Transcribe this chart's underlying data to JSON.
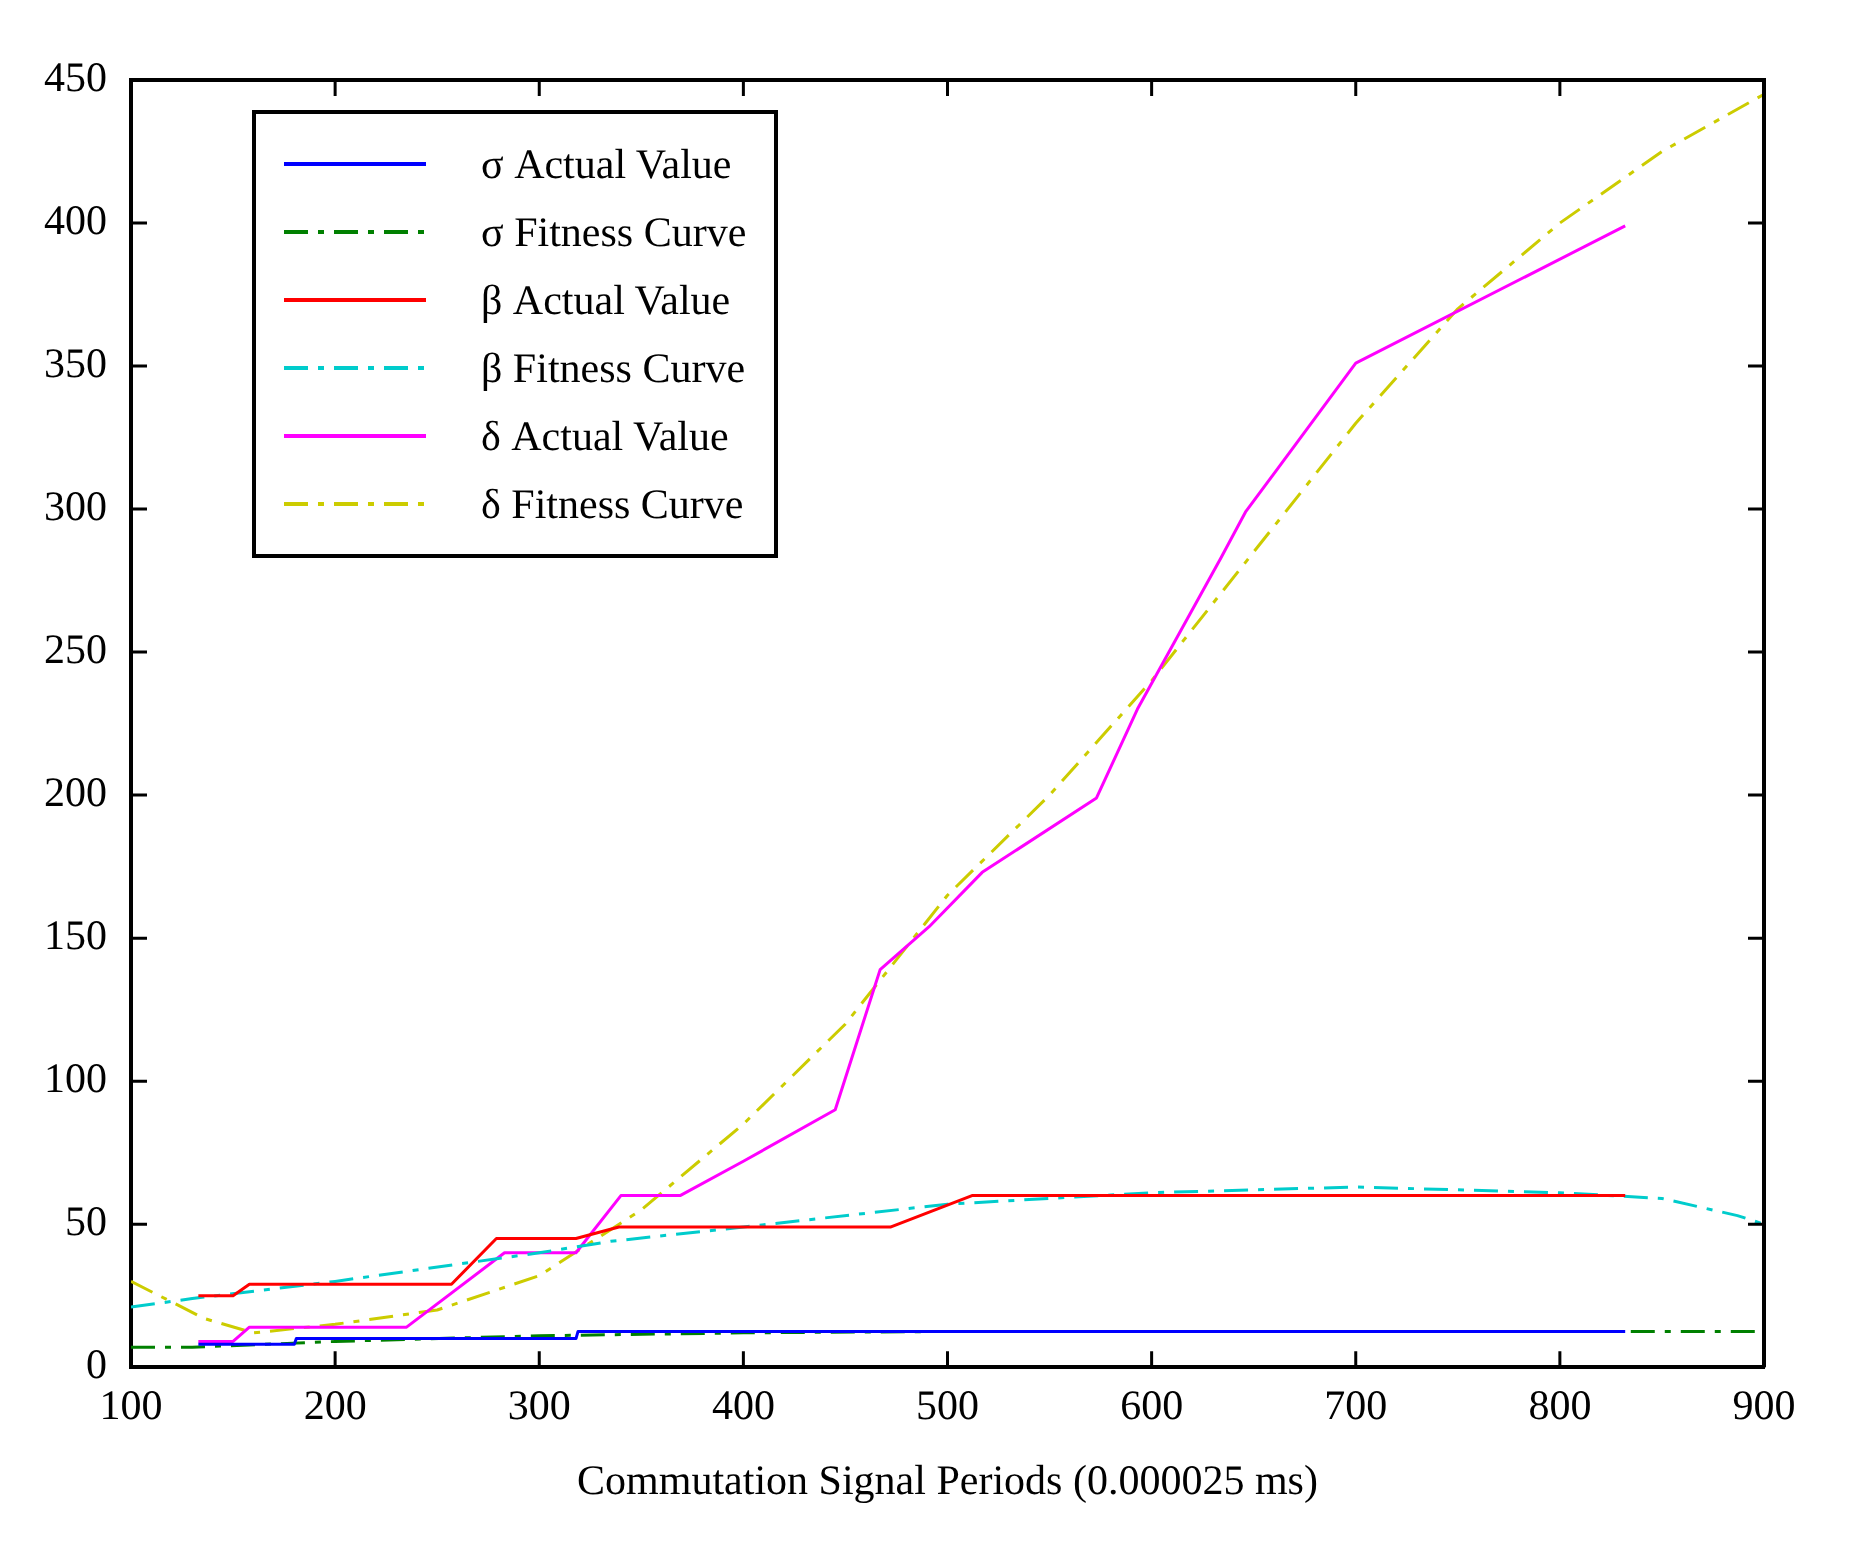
{
  "chart_data": {
    "type": "line",
    "xlabel": "Commutation Signal Periods (0.000025 ms)",
    "xlim": [
      100,
      900
    ],
    "xticks": [
      100,
      200,
      300,
      400,
      500,
      600,
      700,
      800,
      900
    ],
    "ylim": [
      0,
      450
    ],
    "yticks": [
      0,
      50,
      100,
      150,
      200,
      250,
      300,
      350,
      400,
      450
    ],
    "grid": false,
    "legend": "top left",
    "marker": "none",
    "series": [
      {
        "name": "σ Actual Value",
        "color": "#0000ff",
        "line_style": "solid",
        "x": [
          133,
          180,
          181,
          318,
          319,
          832
        ],
        "values": [
          8,
          8,
          10,
          10,
          12.5,
          12.5
        ]
      },
      {
        "name": "σ Fitness Curve",
        "color": "#008000",
        "line_style": "dashdot",
        "x": [
          100,
          130,
          200,
          300,
          400,
          500,
          900
        ],
        "values": [
          7,
          7,
          9,
          11,
          12,
          12.5,
          12.5
        ]
      },
      {
        "name": "β Actual Value",
        "color": "#ff0000",
        "line_style": "solid",
        "x": [
          133,
          150,
          158,
          257,
          279,
          318,
          339,
          472,
          512,
          832
        ],
        "values": [
          25,
          25,
          29,
          29,
          45,
          45,
          49,
          49,
          60,
          60
        ]
      },
      {
        "name": "β Fitness Curve",
        "color": "#00cccc",
        "line_style": "dashdot",
        "x": [
          100,
          130,
          200,
          300,
          335,
          400,
          500,
          600,
          700,
          800,
          850,
          887,
          900
        ],
        "values": [
          21,
          24,
          30,
          40,
          44,
          49,
          57,
          61,
          63,
          61,
          59,
          53,
          50
        ]
      },
      {
        "name": "δ Actual Value",
        "color": "#ff00ff",
        "line_style": "solid",
        "x": [
          133,
          150,
          158,
          235,
          283,
          318,
          340,
          369,
          400,
          445,
          467,
          491,
          517,
          573,
          593,
          634,
          646,
          700,
          832
        ],
        "values": [
          9,
          9,
          14,
          14,
          40,
          40,
          60,
          60,
          72,
          90,
          139,
          154,
          173,
          199,
          230,
          283,
          299,
          351,
          399
        ]
      },
      {
        "name": "δ Fitness Curve",
        "color": "#cccc00",
        "line_style": "dashdot",
        "x": [
          100,
          136,
          160,
          200,
          250,
          300,
          350,
          400,
          450,
          500,
          550,
          600,
          650,
          700,
          750,
          800,
          850,
          900
        ],
        "values": [
          30,
          17,
          12,
          15,
          20,
          32,
          55,
          85,
          120,
          165,
          200,
          240,
          285,
          330,
          370,
          400,
          425,
          445
        ]
      }
    ]
  }
}
